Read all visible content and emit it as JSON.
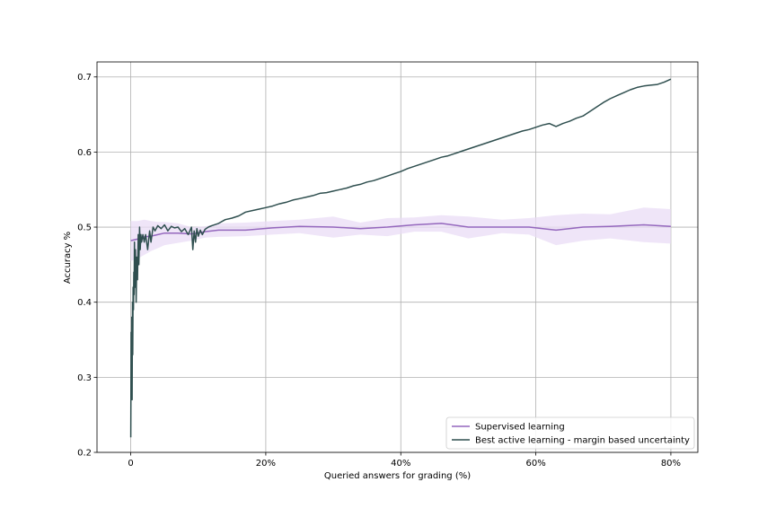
{
  "chart_data": {
    "type": "line",
    "title": "",
    "xlabel": "Queried answers for grading (%)",
    "ylabel": "Accuracy %",
    "xlim": [
      -5,
      84
    ],
    "ylim": [
      0.2,
      0.72
    ],
    "grid": true,
    "legend_position": "bottom-right",
    "x_ticks": [
      {
        "value": 0,
        "label": "0"
      },
      {
        "value": 20,
        "label": "20%"
      },
      {
        "value": 40,
        "label": "40%"
      },
      {
        "value": 60,
        "label": "60%"
      },
      {
        "value": 80,
        "label": "80%"
      }
    ],
    "y_ticks": [
      {
        "value": 0.2,
        "label": "0.2"
      },
      {
        "value": 0.3,
        "label": "0.3"
      },
      {
        "value": 0.4,
        "label": "0.4"
      },
      {
        "value": 0.5,
        "label": "0.5"
      },
      {
        "value": 0.6,
        "label": "0.6"
      },
      {
        "value": 0.7,
        "label": "0.7"
      }
    ],
    "series": [
      {
        "name": "Supervised learning",
        "color": "#9467bd",
        "band_color": "#e9dcf5",
        "x": [
          0,
          1,
          2,
          3,
          4,
          5,
          7,
          9,
          11,
          13,
          17,
          21,
          25,
          30,
          34,
          38,
          42,
          46,
          50,
          55,
          59,
          63,
          67,
          71,
          76,
          80
        ],
        "y": [
          0.482,
          0.484,
          0.487,
          0.488,
          0.49,
          0.492,
          0.492,
          0.491,
          0.494,
          0.496,
          0.496,
          0.499,
          0.501,
          0.5,
          0.498,
          0.5,
          0.503,
          0.505,
          0.5,
          0.5,
          0.5,
          0.496,
          0.5,
          0.501,
          0.503,
          0.501
        ],
        "lower": [
          0.455,
          0.458,
          0.463,
          0.468,
          0.472,
          0.476,
          0.479,
          0.482,
          0.486,
          0.487,
          0.488,
          0.49,
          0.492,
          0.486,
          0.49,
          0.488,
          0.494,
          0.494,
          0.485,
          0.492,
          0.49,
          0.476,
          0.482,
          0.485,
          0.48,
          0.478
        ],
        "upper": [
          0.508,
          0.508,
          0.51,
          0.508,
          0.507,
          0.507,
          0.505,
          0.5,
          0.501,
          0.505,
          0.506,
          0.508,
          0.51,
          0.514,
          0.506,
          0.512,
          0.513,
          0.516,
          0.514,
          0.51,
          0.512,
          0.516,
          0.518,
          0.517,
          0.526,
          0.524
        ]
      },
      {
        "name": "Best active learning - margin based uncertainty",
        "color": "#2f4f4f",
        "x": [
          0,
          0.05,
          0.1,
          0.15,
          0.2,
          0.25,
          0.3,
          0.35,
          0.4,
          0.45,
          0.5,
          0.55,
          0.6,
          0.7,
          0.8,
          0.9,
          1.0,
          1.1,
          1.2,
          1.3,
          1.4,
          1.5,
          1.6,
          1.8,
          2.0,
          2.2,
          2.5,
          2.8,
          3.0,
          3.3,
          3.6,
          4.0,
          4.5,
          5.0,
          5.5,
          6.0,
          6.5,
          7.0,
          7.5,
          8.0,
          8.5,
          9.0,
          9.2,
          9.4,
          9.6,
          9.8,
          10.0,
          10.3,
          10.6,
          11.0,
          11.5,
          12.0,
          13,
          14,
          15,
          16,
          17,
          18,
          19,
          20,
          21,
          22,
          23,
          24,
          25,
          26,
          27,
          28,
          29,
          30,
          31,
          32,
          33,
          34,
          35,
          36,
          37,
          38,
          39,
          40,
          41,
          42,
          43,
          44,
          45,
          46,
          47,
          48,
          49,
          50,
          51,
          52,
          53,
          54,
          55,
          56,
          57,
          58,
          59,
          60,
          61,
          62,
          63,
          64,
          65,
          66,
          67,
          68,
          69,
          70,
          71,
          72,
          73,
          74,
          75,
          76,
          77,
          78,
          79,
          80
        ],
        "y": [
          0.22,
          0.36,
          0.3,
          0.38,
          0.27,
          0.4,
          0.33,
          0.42,
          0.39,
          0.44,
          0.41,
          0.48,
          0.42,
          0.47,
          0.4,
          0.46,
          0.43,
          0.49,
          0.45,
          0.5,
          0.47,
          0.49,
          0.48,
          0.49,
          0.48,
          0.49,
          0.47,
          0.495,
          0.48,
          0.5,
          0.495,
          0.502,
          0.498,
          0.503,
          0.495,
          0.501,
          0.499,
          0.5,
          0.494,
          0.498,
          0.49,
          0.5,
          0.47,
          0.495,
          0.48,
          0.498,
          0.488,
          0.496,
          0.49,
          0.497,
          0.5,
          0.502,
          0.505,
          0.51,
          0.512,
          0.515,
          0.52,
          0.522,
          0.524,
          0.526,
          0.528,
          0.531,
          0.533,
          0.536,
          0.538,
          0.54,
          0.542,
          0.545,
          0.546,
          0.548,
          0.55,
          0.552,
          0.555,
          0.557,
          0.56,
          0.562,
          0.565,
          0.568,
          0.571,
          0.574,
          0.578,
          0.581,
          0.584,
          0.587,
          0.59,
          0.593,
          0.595,
          0.598,
          0.601,
          0.604,
          0.607,
          0.61,
          0.613,
          0.616,
          0.619,
          0.622,
          0.625,
          0.628,
          0.63,
          0.633,
          0.636,
          0.638,
          0.634,
          0.638,
          0.641,
          0.645,
          0.648,
          0.654,
          0.66,
          0.666,
          0.671,
          0.675,
          0.679,
          0.683,
          0.686,
          0.688,
          0.689,
          0.69,
          0.693,
          0.697
        ]
      }
    ]
  }
}
